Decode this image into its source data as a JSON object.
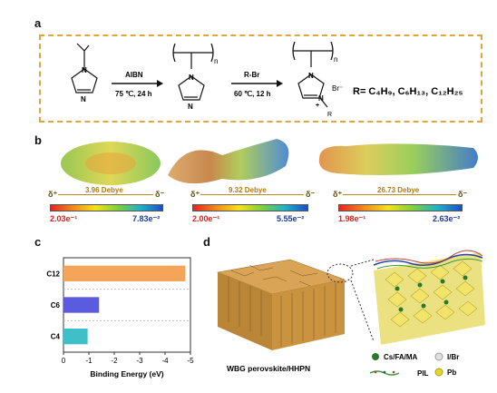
{
  "panels": {
    "a": "a",
    "b": "b",
    "c": "c",
    "d": "d"
  },
  "scheme": {
    "reagent1": "AIBN",
    "cond1": "75 ℃, 24 h",
    "reagent2": "R-Br",
    "cond2": "60 ℃, 12 h",
    "n1": "n",
    "n2": "n",
    "anion": "Br⁻",
    "charge": "+",
    "rgroup": "R",
    "rdef": "R= C₄H₉, C₆H₁₃, C₁₂H₂₅",
    "n_atom": "N"
  },
  "esp": [
    {
      "dipole": "3.96 Debye",
      "low": "2.03e⁻¹",
      "high": "7.83e⁻²"
    },
    {
      "dipole": "9.32 Debye",
      "low": "2.00e⁻¹",
      "high": "5.55e⁻²"
    },
    {
      "dipole": "26.73 Debye",
      "low": "1.98e⁻¹",
      "high": "2.63e⁻²"
    }
  ],
  "delta_plus": "δ⁺",
  "delta_minus": "δ⁻",
  "chart_data": {
    "type": "bar",
    "orientation": "horizontal",
    "categories": [
      "C12",
      "C6",
      "C4"
    ],
    "values": [
      -4.8,
      -1.4,
      -0.95
    ],
    "xlabel": "Binding Energy (eV)",
    "xlim": [
      0,
      -5
    ],
    "xticks": [
      0,
      -1,
      -2,
      -3,
      -4,
      -5
    ],
    "xtick_labels": [
      "0",
      "-1",
      "-2",
      "-3",
      "-4",
      "-5"
    ],
    "colors": [
      "#f5a55a",
      "#5b5be0",
      "#3fc0c9"
    ]
  },
  "panel_d": {
    "label": "WBG perovskite/HHPN",
    "legend": [
      {
        "text": "Cs/FA/MA",
        "color": "#2a7a2a"
      },
      {
        "text": "I/Br",
        "color": "#d8d8d8"
      },
      {
        "text": "PIL",
        "color": ""
      },
      {
        "text": "Pb",
        "color": "#e6d52a"
      }
    ]
  }
}
